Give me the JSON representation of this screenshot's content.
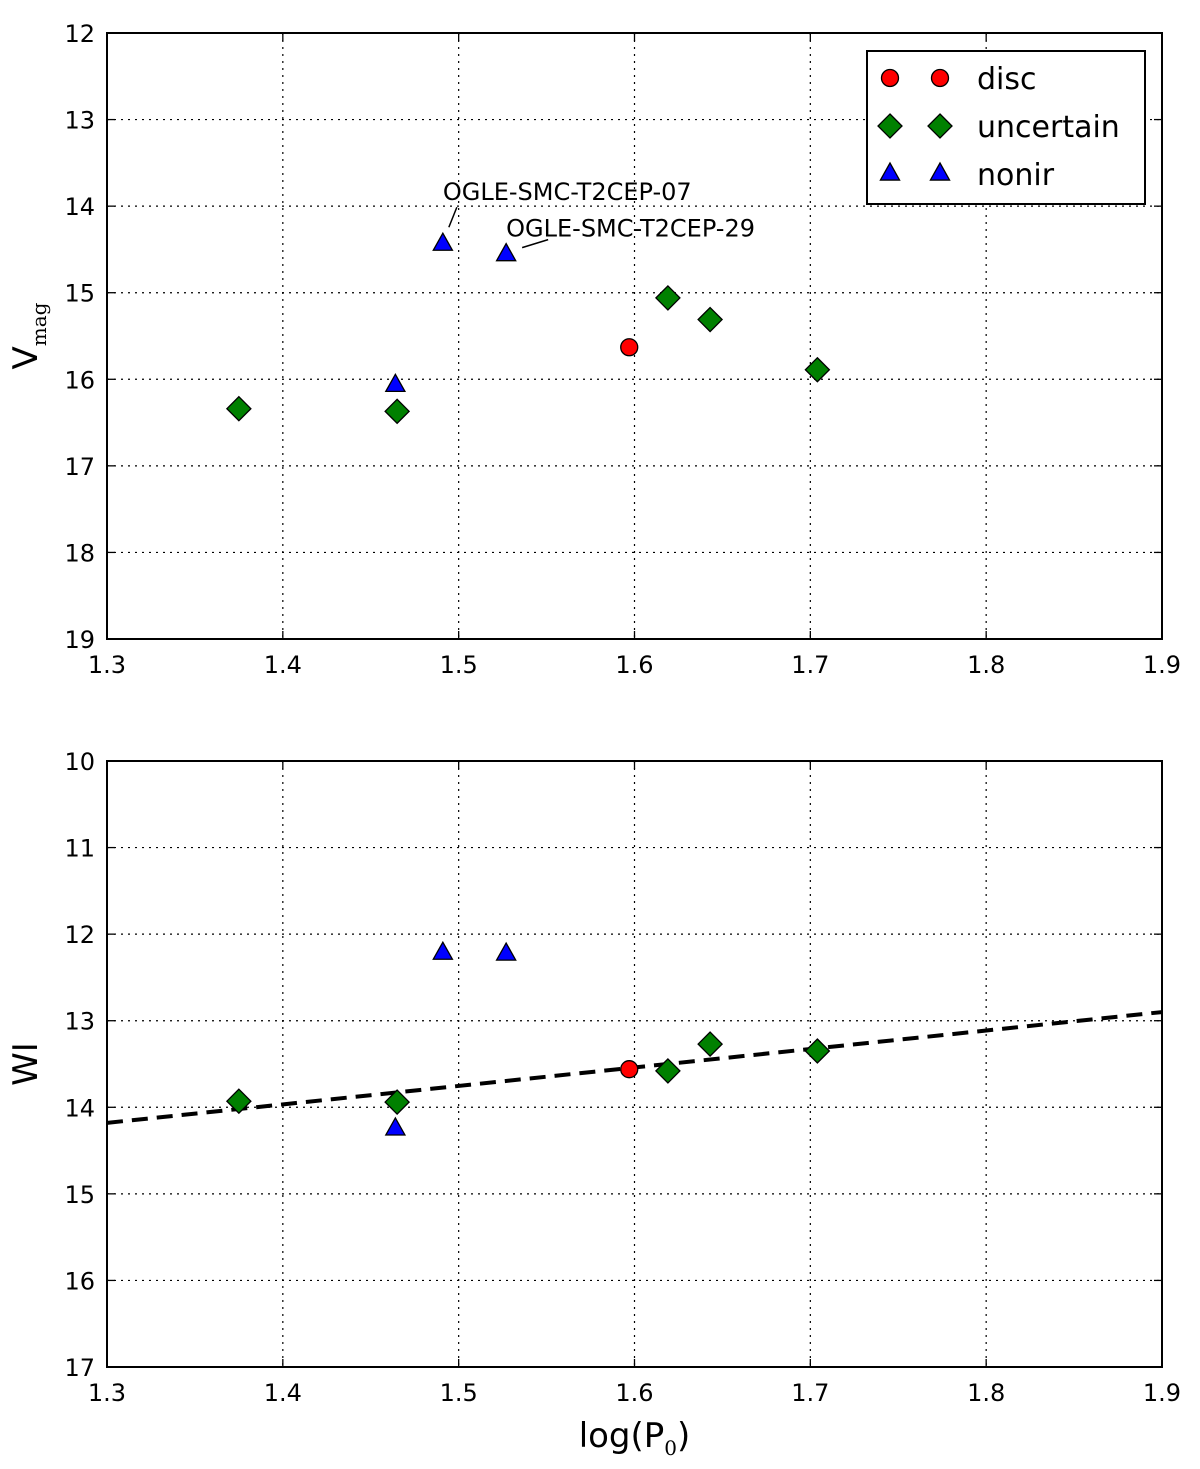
{
  "chart_data": [
    {
      "type": "scatter",
      "title": "",
      "xlabel": "",
      "ylabel": "V",
      "ylabel_sub": "mag",
      "xlim": [
        1.3,
        1.9
      ],
      "ylim": [
        12,
        19
      ],
      "y_inverted": true,
      "grid": true,
      "xticks": [
        "1.3",
        "1.4",
        "1.5",
        "1.6",
        "1.7",
        "1.8",
        "1.9"
      ],
      "yticks": [
        "12",
        "13",
        "14",
        "15",
        "16",
        "17",
        "18",
        "19"
      ],
      "legend": {
        "position": "top-right",
        "entries": [
          {
            "label": "disc",
            "marker": "circle",
            "color": "#ff0000"
          },
          {
            "label": "uncertain",
            "marker": "diamond",
            "color": "#008000"
          },
          {
            "label": "nonir",
            "marker": "triangle",
            "color": "#0000ff"
          }
        ]
      },
      "series": [
        {
          "name": "disc",
          "marker": "circle",
          "color": "#ff0000",
          "points": [
            {
              "x": 1.597,
              "y": 15.63
            }
          ]
        },
        {
          "name": "uncertain",
          "marker": "diamond",
          "color": "#008000",
          "points": [
            {
              "x": 1.375,
              "y": 16.34
            },
            {
              "x": 1.465,
              "y": 16.37
            },
            {
              "x": 1.619,
              "y": 15.06
            },
            {
              "x": 1.643,
              "y": 15.31
            },
            {
              "x": 1.704,
              "y": 15.89
            }
          ]
        },
        {
          "name": "nonir",
          "marker": "triangle",
          "color": "#0000ff",
          "points": [
            {
              "x": 1.464,
              "y": 16.07
            },
            {
              "x": 1.491,
              "y": 14.44
            },
            {
              "x": 1.527,
              "y": 14.56
            }
          ]
        }
      ],
      "annotations": [
        {
          "text": "OGLE-SMC-T2CEP-07",
          "x": 1.491,
          "y": 14.44
        },
        {
          "text": "OGLE-SMC-T2CEP-29",
          "x": 1.527,
          "y": 14.56
        }
      ]
    },
    {
      "type": "scatter",
      "title": "",
      "xlabel": "log(P",
      "xlabel_sub": "0",
      "xlabel_suffix": ")",
      "ylabel": "WI",
      "xlim": [
        1.3,
        1.9
      ],
      "ylim": [
        10,
        17
      ],
      "y_inverted": true,
      "grid": true,
      "xticks": [
        "1.3",
        "1.4",
        "1.5",
        "1.6",
        "1.7",
        "1.8",
        "1.9"
      ],
      "yticks": [
        "10",
        "11",
        "12",
        "13",
        "14",
        "15",
        "16",
        "17"
      ],
      "series": [
        {
          "name": "disc",
          "marker": "circle",
          "color": "#ff0000",
          "points": [
            {
              "x": 1.597,
              "y": 13.56
            }
          ]
        },
        {
          "name": "uncertain",
          "marker": "diamond",
          "color": "#008000",
          "points": [
            {
              "x": 1.375,
              "y": 13.93
            },
            {
              "x": 1.465,
              "y": 13.94
            },
            {
              "x": 1.619,
              "y": 13.58
            },
            {
              "x": 1.643,
              "y": 13.27
            },
            {
              "x": 1.704,
              "y": 13.35
            }
          ]
        },
        {
          "name": "nonir",
          "marker": "triangle",
          "color": "#0000ff",
          "points": [
            {
              "x": 1.464,
              "y": 14.25
            },
            {
              "x": 1.491,
              "y": 12.22
            },
            {
              "x": 1.527,
              "y": 12.23
            }
          ]
        }
      ],
      "fit_line": {
        "style": "dashed",
        "color": "#000000",
        "x": [
          1.3,
          1.9
        ],
        "y": [
          14.18,
          12.9
        ]
      }
    }
  ]
}
